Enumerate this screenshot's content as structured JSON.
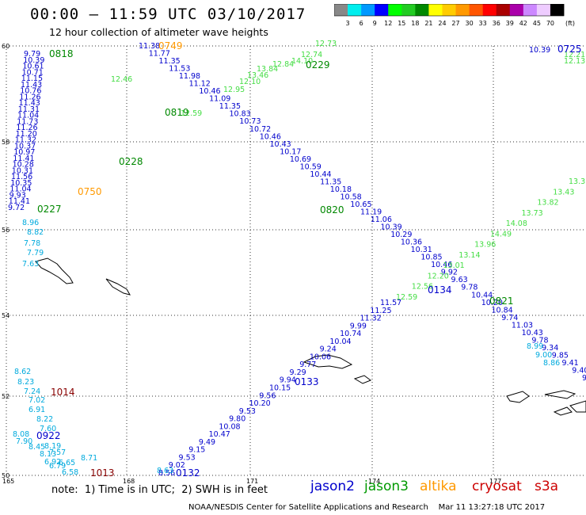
{
  "header": {
    "title": "00:00 – 11:59 UTC 03/10/2017",
    "subtitle": "12 hour collection of altimeter wave heights"
  },
  "legend": {
    "ticks": [
      "3",
      "6",
      "9",
      "12",
      "15",
      "18",
      "21",
      "24",
      "27",
      "30",
      "33",
      "36",
      "39",
      "42",
      "45",
      "70"
    ],
    "unit": "(ft)",
    "colors": [
      "#888888",
      "#00eeee",
      "#0099ff",
      "#0000ff",
      "#00ff00",
      "#22cc22",
      "#008800",
      "#ffff00",
      "#ffcc00",
      "#ff9900",
      "#ff5500",
      "#ff0000",
      "#aa0000",
      "#aa00aa",
      "#cc88ff",
      "#eeccff",
      "#000000"
    ]
  },
  "axes": {
    "lat_labels": [
      "60",
      "58",
      "56",
      "54",
      "52",
      "50"
    ],
    "lon_labels": [
      "165",
      "168",
      "171",
      "174",
      "177"
    ]
  },
  "footer": {
    "note": "note:  1) Time is in UTC;  2) SWH is in feet",
    "credit": "NOAA/NESDIS Center for Satellite Applications and Research    Mar 11 13:27:18 UTC 2017",
    "satellites": [
      {
        "name": "jason2",
        "color": "#0000cc"
      },
      {
        "name": "jason3",
        "color": "#009900"
      },
      {
        "name": "altika",
        "color": "#ff9900"
      },
      {
        "name": "cryosat",
        "color": "#cc0000"
      },
      {
        "name": "s3a",
        "color": "#cc0000"
      }
    ]
  },
  "time_labels": [
    {
      "text": "0818",
      "color": "#008800"
    },
    {
      "text": "0749",
      "color": "#ff9900"
    },
    {
      "text": "0229",
      "color": "#008800"
    },
    {
      "text": "0725",
      "color": "#0000cc"
    },
    {
      "text": "0819",
      "color": "#008800"
    },
    {
      "text": "0228",
      "color": "#008800"
    },
    {
      "text": "0750",
      "color": "#ff9900"
    },
    {
      "text": "0227",
      "color": "#008800"
    },
    {
      "text": "0820",
      "color": "#008800"
    },
    {
      "text": "0134",
      "color": "#0000cc"
    },
    {
      "text": "0821",
      "color": "#008800"
    },
    {
      "text": "0133",
      "color": "#0000cc"
    },
    {
      "text": "1014",
      "color": "#880000"
    },
    {
      "text": "0922",
      "color": "#0000cc"
    },
    {
      "text": "1013",
      "color": "#880000"
    },
    {
      "text": "0132",
      "color": "#0000cc"
    }
  ],
  "tracks": [
    {
      "name": "jason2-descending",
      "color": "#0000cc",
      "values": [
        "11.38",
        "11.77",
        "11.35",
        "11.53",
        "11.98",
        "11.12",
        "10.46",
        "11.09",
        "11.35",
        "10.83",
        "10.73",
        "10.72",
        "10.46",
        "10.43",
        "10.17",
        "10.69",
        "10.59",
        "10.44",
        "11.35",
        "10.18",
        "10.58",
        "10.65",
        "11.19",
        "11.06",
        "10.39",
        "10.29",
        "10.36",
        "10.31",
        "10.85",
        "10.46",
        "9.92",
        "9.63",
        "9.78",
        "10.44",
        "10.20",
        "10.84",
        "9.74",
        "11.03",
        "10.43",
        "9.78",
        "9.34",
        "9.85",
        "9.41",
        "9.40",
        "9.3"
      ]
    },
    {
      "name": "jason2-west-arc",
      "color": "#0000cc",
      "values": [
        "9.79",
        "10.39",
        "10.61",
        "10.71",
        "11.15",
        "11.43",
        "10.76",
        "11.26",
        "11.43",
        "11.31",
        "11.04",
        "11.73",
        "11.26",
        "11.20",
        "11.32",
        "10.37",
        "10.97",
        "11.41",
        "10.28",
        "10.31",
        "11.56",
        "10.35",
        "11.04",
        "9.93",
        "11.41",
        "9.72"
      ]
    },
    {
      "name": "jason2-ascending",
      "color": "#0000cc",
      "values": [
        "11.57",
        "11.25",
        "11.32",
        "9.99",
        "10.74",
        "10.04",
        "9.24",
        "10.06",
        "9.77",
        "9.29",
        "9.94",
        "10.15",
        "9.56",
        "10.20",
        "9.53",
        "9.80",
        "10.08",
        "10.47",
        "9.49",
        "9.15",
        "9.53",
        "9.02",
        "8.56"
      ]
    },
    {
      "name": "jason2-northeast",
      "color": "#0000cc",
      "values": [
        "10.39"
      ]
    },
    {
      "name": "jason3-northeast",
      "color": "#44dd44",
      "values": [
        "12.73",
        "12.74",
        "14.10",
        "12.84",
        "13.84",
        "13.46",
        "12.10",
        "12.95",
        "12.46",
        "12.21",
        "12.13",
        "12.59"
      ]
    },
    {
      "name": "jason3-ascending",
      "color": "#44dd44",
      "values": [
        "13.31",
        "13.43",
        "13.82",
        "13.73",
        "14.08",
        "14.49",
        "13.96",
        "13.14",
        "13.01",
        "12.20",
        "12.56",
        "12.59"
      ]
    },
    {
      "name": "altika-southwest",
      "color": "#00aadd",
      "values": [
        "8.96",
        "8.82",
        "7.78",
        "7.79",
        "7.63",
        "8.62",
        "8.23",
        "7.24",
        "7.02",
        "6.91",
        "8.22",
        "7.60",
        "8.08",
        "7.90",
        "8.45",
        "8.19",
        "8.13",
        "7.57",
        "6.92",
        "6.65",
        "6.79",
        "6.58",
        "8.71",
        "8.63",
        "8.99",
        "9.00",
        "8.86"
      ]
    }
  ],
  "map_labels": []
}
